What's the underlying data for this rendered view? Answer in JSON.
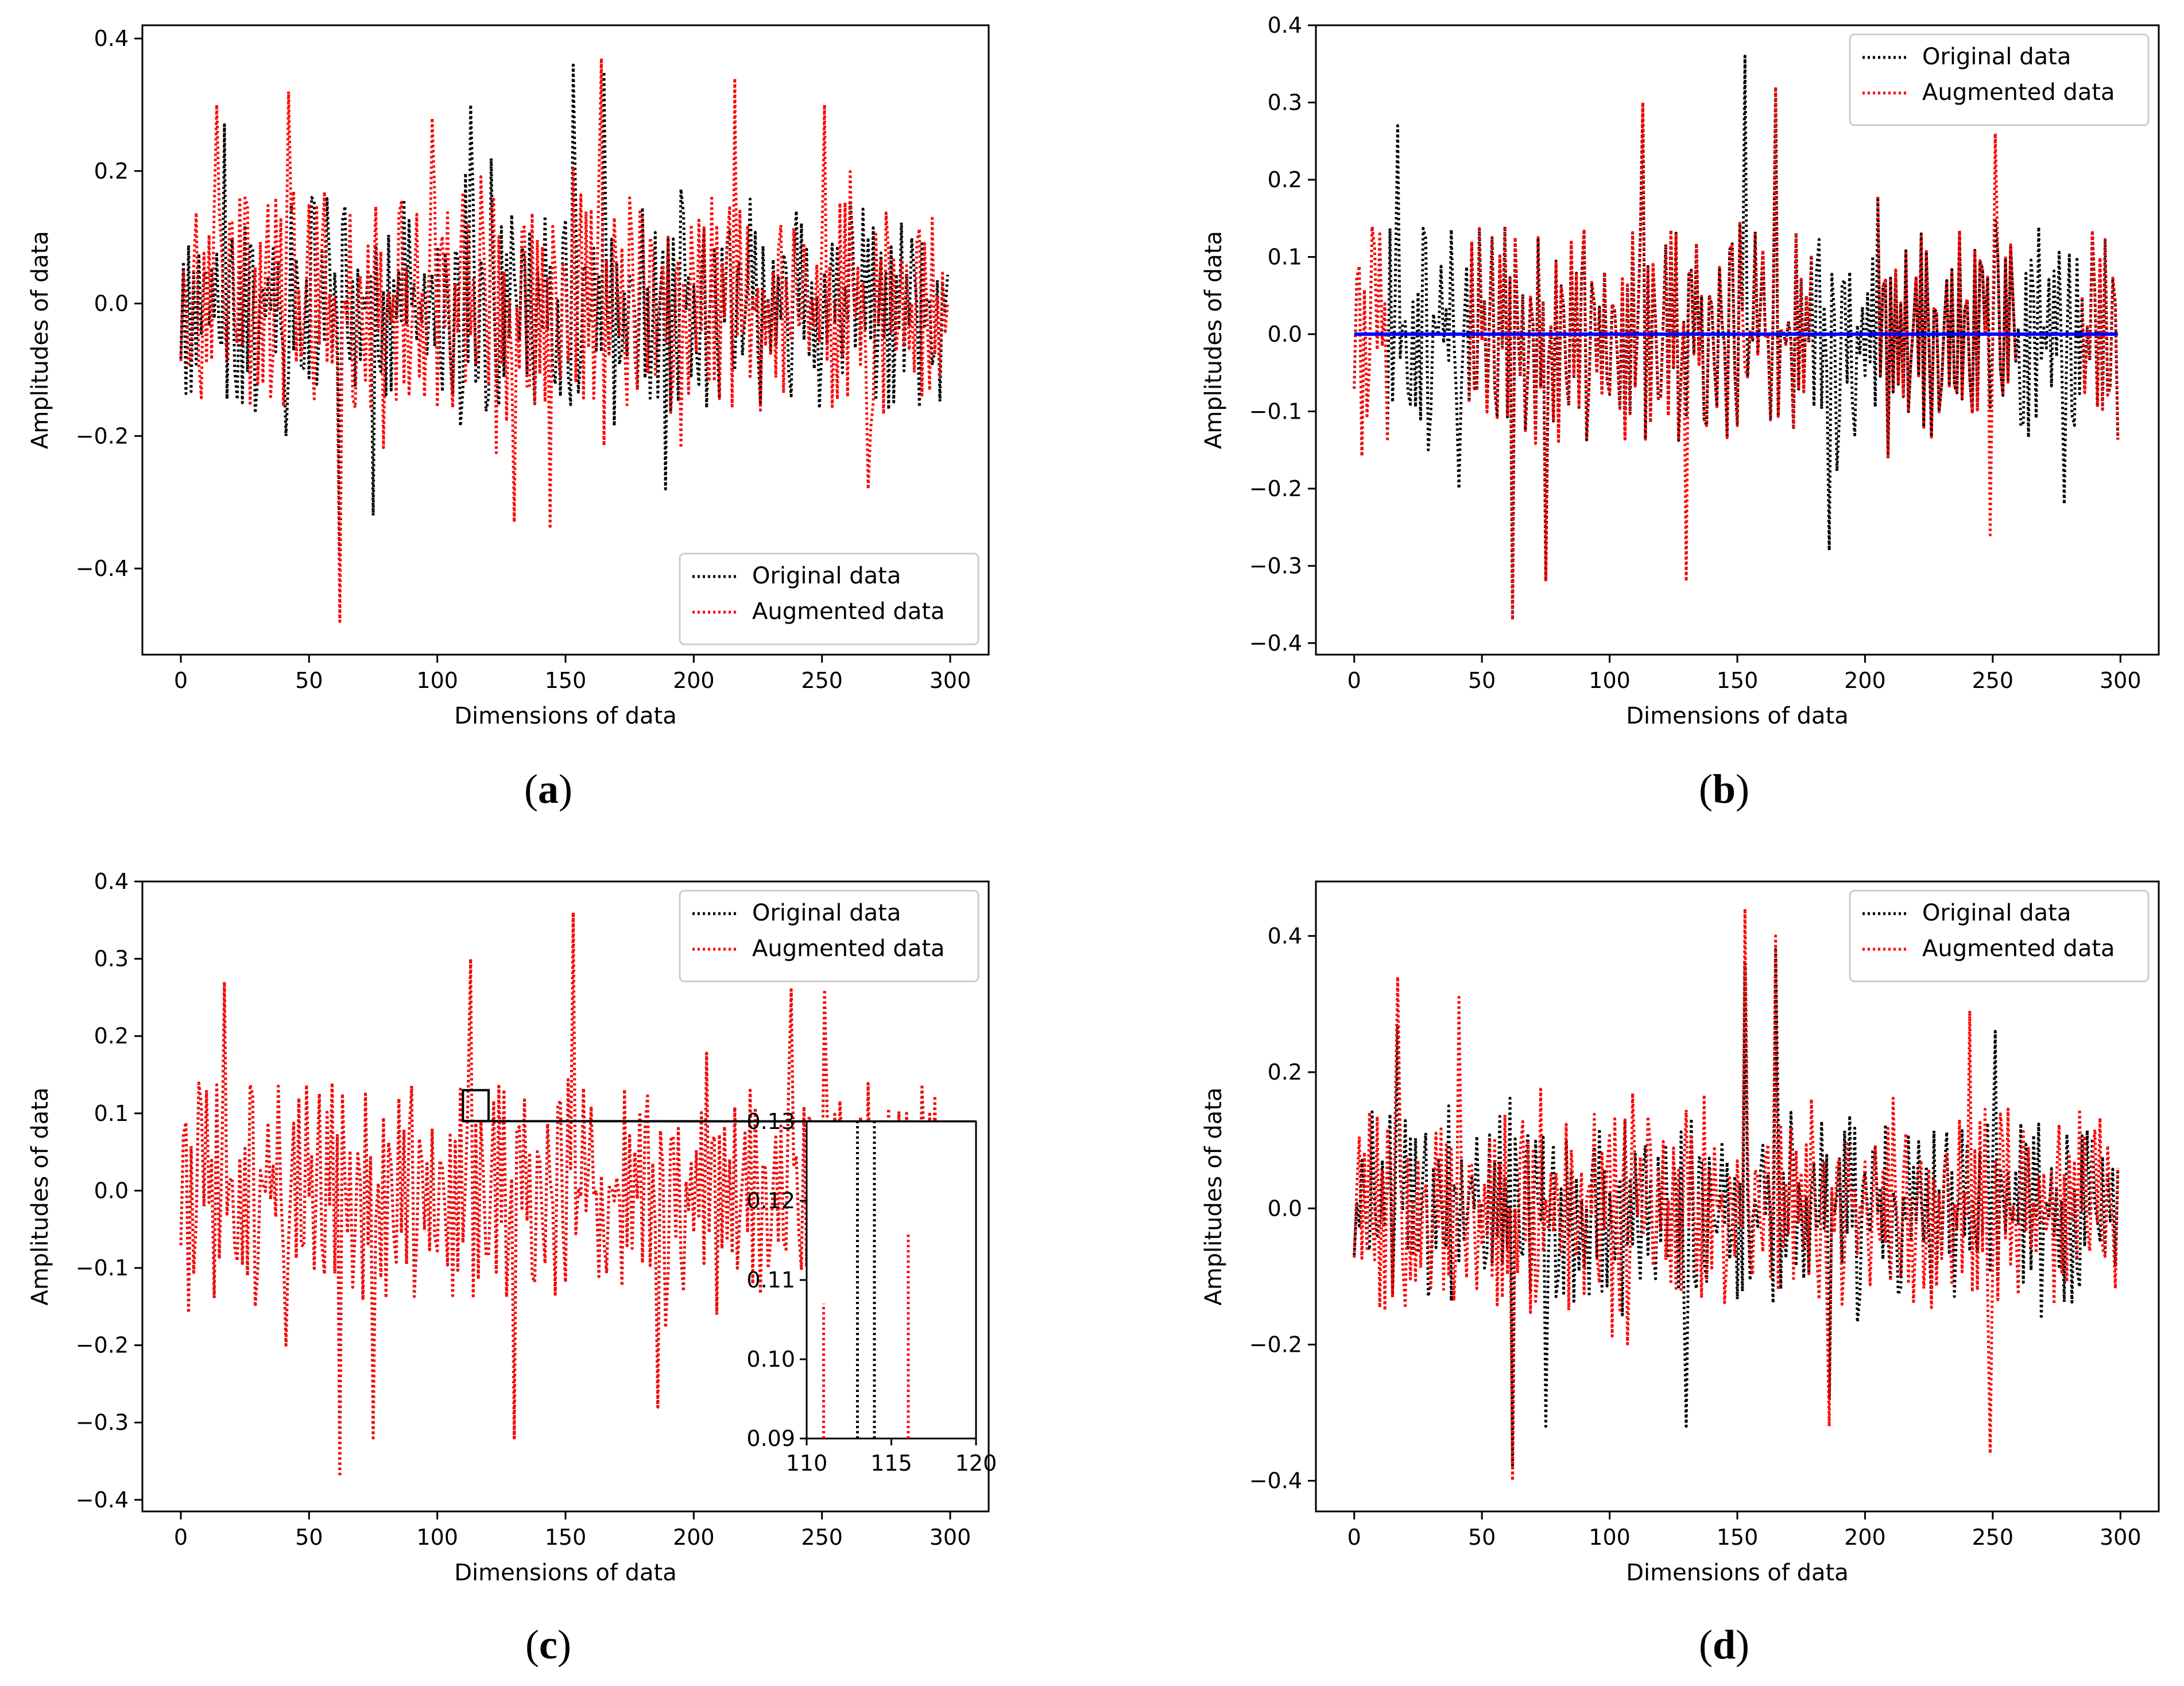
{
  "chart_data": [
    {
      "id": "a",
      "type": "line",
      "caption_label": "a",
      "caption_open": "(",
      "caption_close": ")",
      "xlabel": "Dimensions of data",
      "ylabel": "Amplitudes of data",
      "xlim": [
        -15,
        315
      ],
      "ylim": [
        -0.53,
        0.42
      ],
      "xticks": [
        0,
        50,
        100,
        150,
        200,
        250,
        300
      ],
      "xtick_labels": [
        "0",
        "50",
        "100",
        "150",
        "200",
        "250",
        "300"
      ],
      "yticks": [
        -0.4,
        -0.2,
        0.0,
        0.2,
        0.4
      ],
      "ytick_labels": [
        "−0.4",
        "−0.2",
        "0.0",
        "0.2",
        "0.4"
      ],
      "legend_position": "lower-right",
      "series": [
        {
          "name": "Original data",
          "color": "#000000",
          "style": "dotted",
          "seed": 11,
          "n": 300,
          "amp": 0.16,
          "spikes": [
            [
              17,
              0.27
            ],
            [
              41,
              -0.2
            ],
            [
              62,
              -0.38
            ],
            [
              75,
              -0.32
            ],
            [
              113,
              0.3
            ],
            [
              153,
              0.36
            ],
            [
              165,
              0.35
            ],
            [
              189,
              -0.28
            ]
          ]
        },
        {
          "name": "Augmented data",
          "color": "#ff0000",
          "style": "dotted",
          "seed": 23,
          "n": 300,
          "amp": 0.17,
          "spikes": [
            [
              14,
              0.3
            ],
            [
              42,
              0.32
            ],
            [
              62,
              -0.48
            ],
            [
              98,
              0.28
            ],
            [
              130,
              -0.33
            ],
            [
              144,
              -0.34
            ],
            [
              164,
              0.37
            ],
            [
              216,
              0.34
            ],
            [
              251,
              0.3
            ],
            [
              268,
              -0.28
            ]
          ]
        }
      ]
    },
    {
      "id": "b",
      "type": "line",
      "caption_label": "b",
      "caption_open": "(",
      "caption_close": ")",
      "xlabel": "Dimensions of data",
      "ylabel": "Amplitudes of data",
      "xlim": [
        -15,
        315
      ],
      "ylim": [
        -0.415,
        0.4
      ],
      "xticks": [
        0,
        50,
        100,
        150,
        200,
        250,
        300
      ],
      "xtick_labels": [
        "0",
        "50",
        "100",
        "150",
        "200",
        "250",
        "300"
      ],
      "yticks": [
        -0.4,
        -0.3,
        -0.2,
        -0.1,
        0.0,
        0.1,
        0.2,
        0.3,
        0.4
      ],
      "ytick_labels": [
        "−0.4",
        "−0.3",
        "−0.2",
        "−0.1",
        "0.0",
        "0.1",
        "0.2",
        "0.3",
        "0.4"
      ],
      "legend_position": "top-right",
      "baseline": {
        "y": 0.0,
        "color": "#0000ff"
      },
      "series": [
        {
          "name": "Original data",
          "color": "#000000",
          "style": "dotted",
          "seed": 31,
          "n": 300,
          "amp": 0.14,
          "spikes": [
            [
              17,
              0.27
            ],
            [
              41,
              -0.2
            ],
            [
              62,
              -0.37
            ],
            [
              75,
              -0.32
            ],
            [
              113,
              0.3
            ],
            [
              153,
              0.36
            ],
            [
              165,
              0.32
            ],
            [
              186,
              -0.28
            ],
            [
              278,
              -0.22
            ]
          ]
        },
        {
          "name": "Augmented data",
          "color": "#ff0000",
          "style": "dotted",
          "seed": 31,
          "n": 300,
          "amp": 0.14,
          "spikes": [
            [
              62,
              -0.37
            ],
            [
              75,
              -0.32
            ],
            [
              113,
              0.3
            ],
            [
              130,
              -0.32
            ],
            [
              165,
              0.32
            ],
            [
              249,
              -0.26
            ],
            [
              251,
              0.26
            ]
          ],
          "mask": [
            [
              0,
              14
            ],
            [
              45,
              180
            ],
            [
              205,
              260
            ],
            [
              285,
              300
            ]
          ]
        }
      ]
    },
    {
      "id": "c",
      "type": "line",
      "caption_label": "c",
      "caption_open": "(",
      "caption_close": ")",
      "xlabel": "Dimensions of data",
      "ylabel": "Amplitudes of data",
      "xlim": [
        -15,
        315
      ],
      "ylim": [
        -0.415,
        0.4
      ],
      "xticks": [
        0,
        50,
        100,
        150,
        200,
        250,
        300
      ],
      "xtick_labels": [
        "0",
        "50",
        "100",
        "150",
        "200",
        "250",
        "300"
      ],
      "yticks": [
        -0.4,
        -0.3,
        -0.2,
        -0.1,
        0.0,
        0.1,
        0.2,
        0.3,
        0.4
      ],
      "ytick_labels": [
        "−0.4",
        "−0.3",
        "−0.2",
        "−0.1",
        "0.0",
        "0.1",
        "0.2",
        "0.3",
        "0.4"
      ],
      "legend_position": "top-right",
      "zoom_box": {
        "x": [
          110,
          120
        ],
        "y": [
          0.09,
          0.13
        ]
      },
      "inset": {
        "xlim": [
          110,
          120
        ],
        "ylim": [
          0.09,
          0.13
        ],
        "xticks": [
          110,
          115,
          120
        ],
        "xtick_labels": [
          "110",
          "115",
          "120"
        ],
        "yticks": [
          0.09,
          0.1,
          0.11,
          0.12,
          0.13
        ],
        "ytick_labels": [
          "0.09",
          "0.10",
          "0.11",
          "0.12",
          "0.13"
        ],
        "lines": [
          {
            "x": 111,
            "top": 0.107,
            "color": "#ff0000"
          },
          {
            "x": 113,
            "top": 0.13,
            "color": "#000000"
          },
          {
            "x": 114,
            "top": 0.13,
            "color": "#000000"
          },
          {
            "x": 116,
            "top": 0.116,
            "color": "#ff0000"
          }
        ]
      },
      "series": [
        {
          "name": "Original data",
          "color": "#000000",
          "style": "dotted",
          "seed": 31,
          "n": 300,
          "amp": 0.14,
          "spikes": [
            [
              17,
              0.27
            ],
            [
              41,
              -0.2
            ],
            [
              62,
              -0.37
            ],
            [
              75,
              -0.32
            ],
            [
              113,
              0.3
            ],
            [
              130,
              -0.32
            ],
            [
              153,
              0.36
            ],
            [
              186,
              -0.28
            ],
            [
              238,
              0.26
            ],
            [
              251,
              0.26
            ]
          ]
        },
        {
          "name": "Augmented data",
          "color": "#ff0000",
          "style": "dotted",
          "seed": 31,
          "n": 300,
          "amp": 0.14,
          "spikes": [
            [
              17,
              0.27
            ],
            [
              41,
              -0.2
            ],
            [
              62,
              -0.37
            ],
            [
              75,
              -0.32
            ],
            [
              113,
              0.3
            ],
            [
              130,
              -0.32
            ],
            [
              153,
              0.36
            ],
            [
              186,
              -0.28
            ],
            [
              238,
              0.26
            ],
            [
              251,
              0.26
            ]
          ]
        }
      ]
    },
    {
      "id": "d",
      "type": "line",
      "caption_label": "d",
      "caption_open": "(",
      "caption_close": ")",
      "xlabel": "Dimensions of data",
      "ylabel": "Amplitudes of data",
      "xlim": [
        -15,
        315
      ],
      "ylim": [
        -0.445,
        0.48
      ],
      "xticks": [
        0,
        50,
        100,
        150,
        200,
        250,
        300
      ],
      "xtick_labels": [
        "0",
        "50",
        "100",
        "150",
        "200",
        "250",
        "300"
      ],
      "yticks": [
        -0.4,
        -0.2,
        0.0,
        0.2,
        0.4
      ],
      "ytick_labels": [
        "−0.4",
        "−0.2",
        "0.0",
        "0.2",
        "0.4"
      ],
      "legend_position": "top-right",
      "series": [
        {
          "name": "Original data",
          "color": "#000000",
          "style": "dotted",
          "seed": 47,
          "n": 300,
          "amp": 0.14,
          "spikes": [
            [
              17,
              0.27
            ],
            [
              62,
              -0.38
            ],
            [
              75,
              -0.32
            ],
            [
              130,
              -0.32
            ],
            [
              153,
              0.36
            ],
            [
              165,
              0.38
            ],
            [
              186,
              -0.28
            ],
            [
              251,
              0.26
            ]
          ]
        },
        {
          "name": "Augmented data",
          "color": "#ff0000",
          "style": "dotted",
          "seed": 59,
          "n": 300,
          "amp": 0.15,
          "spikes": [
            [
              17,
              0.34
            ],
            [
              41,
              0.31
            ],
            [
              62,
              -0.4
            ],
            [
              153,
              0.44
            ],
            [
              165,
              0.4
            ],
            [
              186,
              -0.32
            ],
            [
              241,
              0.29
            ],
            [
              249,
              -0.36
            ]
          ]
        }
      ]
    }
  ]
}
